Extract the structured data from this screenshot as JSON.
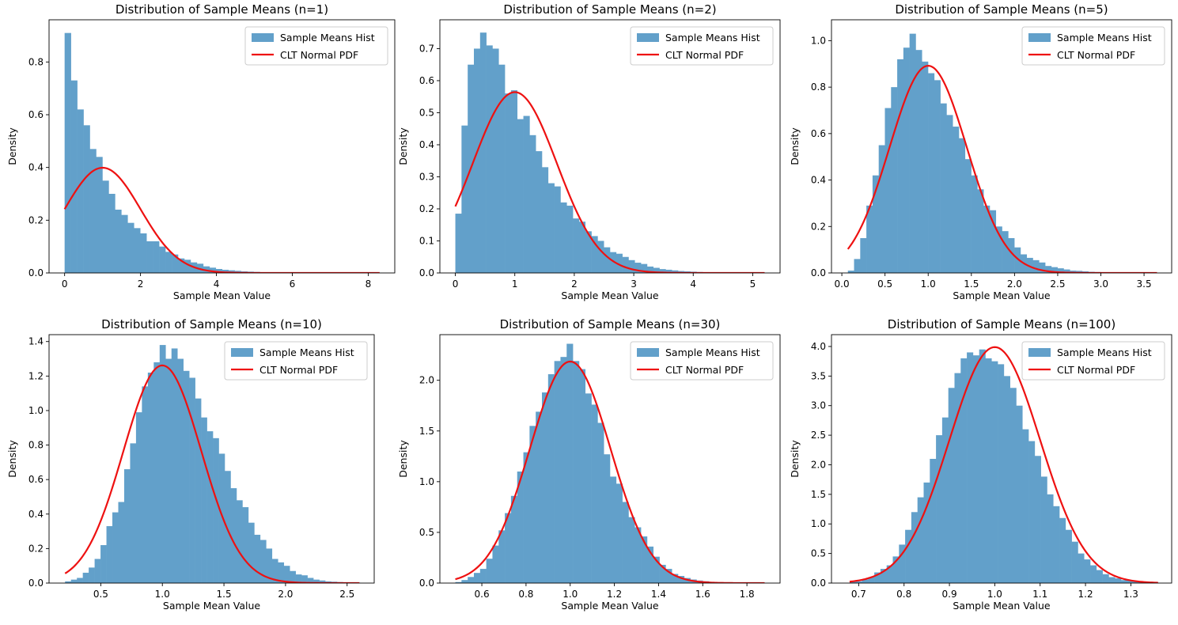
{
  "colors": {
    "hist": "#62a0ca",
    "pdf": "#ee1111",
    "axis": "#000000",
    "legend_border": "#cccccc"
  },
  "chart_data": [
    {
      "type": "bar",
      "title": "Distribution of Sample Means (n=1)",
      "xlabel": "Sample Mean Value",
      "ylabel": "Density",
      "xlim": [
        -0.41,
        8.7
      ],
      "ylim": [
        0,
        0.96
      ],
      "xticks": [
        0,
        2,
        4,
        6,
        8
      ],
      "xtick_labels": [
        "0",
        "2",
        "4",
        "6",
        "8"
      ],
      "yticks": [
        0,
        0.2,
        0.4,
        0.6,
        0.8
      ],
      "ytick_labels": [
        "0.0",
        "0.2",
        "0.4",
        "0.6",
        "0.8"
      ],
      "bin_start": 0.0,
      "bin_width": 0.166,
      "values": [
        0.91,
        0.73,
        0.62,
        0.56,
        0.47,
        0.44,
        0.35,
        0.3,
        0.24,
        0.22,
        0.19,
        0.17,
        0.15,
        0.12,
        0.12,
        0.1,
        0.08,
        0.07,
        0.055,
        0.05,
        0.04,
        0.035,
        0.025,
        0.02,
        0.015,
        0.012,
        0.01,
        0.008,
        0.006,
        0.005,
        0.004,
        0.003,
        0.002,
        0.002,
        0.0015,
        0.001,
        0.001,
        0.0008,
        0.0006,
        0.0005,
        0.0004,
        0.0003,
        0.0002,
        0.0002,
        0.0002,
        0.0001,
        0.0001,
        0.0001,
        0.0001,
        0.0001
      ],
      "normal": {
        "mean": 1.0,
        "sd": 1.0,
        "x_range": [
          0.0,
          8.3
        ]
      },
      "legend": [
        "Sample Means Hist",
        "CLT Normal PDF"
      ],
      "legend_loc": "upper right"
    },
    {
      "type": "bar",
      "title": "Distribution of Sample Means (n=2)",
      "xlabel": "Sample Mean Value",
      "ylabel": "Density",
      "xlim": [
        -0.26,
        5.46
      ],
      "ylim": [
        0,
        0.79
      ],
      "xticks": [
        0,
        1,
        2,
        3,
        4,
        5
      ],
      "xtick_labels": [
        "0",
        "1",
        "2",
        "3",
        "4",
        "5"
      ],
      "yticks": [
        0,
        0.1,
        0.2,
        0.3,
        0.4,
        0.5,
        0.6,
        0.7
      ],
      "ytick_labels": [
        "0.0",
        "0.1",
        "0.2",
        "0.3",
        "0.4",
        "0.5",
        "0.6",
        "0.7"
      ],
      "bin_start": 0.0,
      "bin_width": 0.104,
      "values": [
        0.185,
        0.46,
        0.65,
        0.7,
        0.75,
        0.71,
        0.7,
        0.65,
        0.56,
        0.57,
        0.48,
        0.49,
        0.43,
        0.38,
        0.33,
        0.28,
        0.27,
        0.22,
        0.21,
        0.17,
        0.16,
        0.13,
        0.115,
        0.1,
        0.08,
        0.065,
        0.06,
        0.05,
        0.04,
        0.032,
        0.028,
        0.02,
        0.016,
        0.012,
        0.01,
        0.008,
        0.006,
        0.005,
        0.004,
        0.003,
        0.0025,
        0.002,
        0.0015,
        0.001,
        0.001,
        0.0008,
        0.0006,
        0.0005,
        0.0004,
        0.0003
      ],
      "normal": {
        "mean": 1.0,
        "sd": 0.7071,
        "x_range": [
          0.0,
          5.2
        ]
      },
      "legend": [
        "Sample Means Hist",
        "CLT Normal PDF"
      ],
      "legend_loc": "upper right"
    },
    {
      "type": "bar",
      "title": "Distribution of Sample Means (n=5)",
      "xlabel": "Sample Mean Value",
      "ylabel": "Density",
      "xlim": [
        -0.12,
        3.82
      ],
      "ylim": [
        0,
        1.09
      ],
      "xticks": [
        0,
        0.5,
        1,
        1.5,
        2,
        2.5,
        3,
        3.5
      ],
      "xtick_labels": [
        "0.0",
        "0.5",
        "1.0",
        "1.5",
        "2.0",
        "2.5",
        "3.0",
        "3.5"
      ],
      "yticks": [
        0,
        0.2,
        0.4,
        0.6,
        0.8,
        1.0
      ],
      "ytick_labels": [
        "0.0",
        "0.2",
        "0.4",
        "0.6",
        "0.8",
        "1.0"
      ],
      "bin_start": 0.07,
      "bin_width": 0.0714,
      "values": [
        0.01,
        0.06,
        0.15,
        0.29,
        0.42,
        0.55,
        0.71,
        0.8,
        0.92,
        0.97,
        1.03,
        0.96,
        0.91,
        0.86,
        0.83,
        0.73,
        0.68,
        0.63,
        0.58,
        0.49,
        0.42,
        0.36,
        0.29,
        0.27,
        0.2,
        0.18,
        0.15,
        0.11,
        0.08,
        0.065,
        0.055,
        0.045,
        0.03,
        0.025,
        0.02,
        0.015,
        0.01,
        0.009,
        0.007,
        0.005,
        0.004,
        0.003,
        0.002,
        0.002,
        0.0015,
        0.001,
        0.001,
        0.0008,
        0.0005,
        0.0004
      ],
      "normal": {
        "mean": 1.0,
        "sd": 0.4472,
        "x_range": [
          0.07,
          3.65
        ]
      },
      "legend": [
        "Sample Means Hist",
        "CLT Normal PDF"
      ],
      "legend_loc": "upper right"
    },
    {
      "type": "bar",
      "title": "Distribution of Sample Means (n=10)",
      "xlabel": "Sample Mean Value",
      "ylabel": "Density",
      "xlim": [
        0.08,
        2.72
      ],
      "ylim": [
        0,
        1.44
      ],
      "xticks": [
        0.5,
        1.0,
        1.5,
        2.0,
        2.5
      ],
      "xtick_labels": [
        "0.5",
        "1.0",
        "1.5",
        "2.0",
        "2.5"
      ],
      "yticks": [
        0,
        0.2,
        0.4,
        0.6,
        0.8,
        1.0,
        1.2,
        1.4
      ],
      "ytick_labels": [
        "0.0",
        "0.2",
        "0.4",
        "0.6",
        "0.8",
        "1.0",
        "1.2",
        "1.4"
      ],
      "bin_start": 0.21,
      "bin_width": 0.048,
      "values": [
        0.01,
        0.02,
        0.03,
        0.06,
        0.09,
        0.14,
        0.22,
        0.33,
        0.41,
        0.47,
        0.66,
        0.81,
        0.99,
        1.14,
        1.22,
        1.28,
        1.38,
        1.3,
        1.36,
        1.3,
        1.23,
        1.19,
        1.07,
        0.96,
        0.88,
        0.84,
        0.75,
        0.65,
        0.55,
        0.48,
        0.44,
        0.35,
        0.28,
        0.25,
        0.2,
        0.14,
        0.12,
        0.1,
        0.07,
        0.05,
        0.045,
        0.03,
        0.02,
        0.015,
        0.01,
        0.008,
        0.006,
        0.004,
        0.003,
        0.002
      ],
      "normal": {
        "mean": 1.0,
        "sd": 0.3162,
        "x_range": [
          0.21,
          2.6
        ]
      },
      "legend": [
        "Sample Means Hist",
        "CLT Normal PDF"
      ],
      "legend_loc": "upper right"
    },
    {
      "type": "bar",
      "title": "Distribution of Sample Means (n=30)",
      "xlabel": "Sample Mean Value",
      "ylabel": "Density",
      "xlim": [
        0.41,
        1.95
      ],
      "ylim": [
        0,
        2.45
      ],
      "xticks": [
        0.6,
        0.8,
        1.0,
        1.2,
        1.4,
        1.6,
        1.8
      ],
      "xtick_labels": [
        "0.6",
        "0.8",
        "1.0",
        "1.2",
        "1.4",
        "1.6",
        "1.8"
      ],
      "yticks": [
        0,
        0.5,
        1.0,
        1.5,
        2.0
      ],
      "ytick_labels": [
        "0.0",
        "0.5",
        "1.0",
        "1.5",
        "2.0"
      ],
      "bin_start": 0.48,
      "bin_width": 0.028,
      "values": [
        0.01,
        0.03,
        0.06,
        0.1,
        0.14,
        0.24,
        0.37,
        0.52,
        0.69,
        0.86,
        1.1,
        1.29,
        1.55,
        1.69,
        1.88,
        2.06,
        2.19,
        2.23,
        2.36,
        2.19,
        2.11,
        1.87,
        1.76,
        1.58,
        1.27,
        1.05,
        0.98,
        0.8,
        0.65,
        0.55,
        0.46,
        0.36,
        0.26,
        0.18,
        0.14,
        0.09,
        0.07,
        0.05,
        0.035,
        0.025,
        0.018,
        0.012,
        0.008,
        0.006,
        0.004,
        0.003,
        0.002,
        0.0015,
        0.001,
        0.001
      ],
      "normal": {
        "mean": 1.0,
        "sd": 0.1826,
        "x_range": [
          0.48,
          1.88
        ]
      },
      "legend": [
        "Sample Means Hist",
        "CLT Normal PDF"
      ],
      "legend_loc": "upper right"
    },
    {
      "type": "bar",
      "title": "Distribution of Sample Means (n=100)",
      "xlabel": "Sample Mean Value",
      "ylabel": "Density",
      "xlim": [
        0.64,
        1.39
      ],
      "ylim": [
        0,
        4.2
      ],
      "xticks": [
        0.7,
        0.8,
        0.9,
        1.0,
        1.1,
        1.2,
        1.3
      ],
      "xtick_labels": [
        "0.7",
        "0.8",
        "0.9",
        "1.0",
        "1.1",
        "1.2",
        "1.3"
      ],
      "yticks": [
        0,
        0.5,
        1.0,
        1.5,
        2.0,
        2.5,
        3.0,
        3.5,
        4.0
      ],
      "ytick_labels": [
        "0.0",
        "0.5",
        "1.0",
        "1.5",
        "2.0",
        "2.5",
        "3.0",
        "3.5",
        "4.0"
      ],
      "bin_start": 0.68,
      "bin_width": 0.0136,
      "values": [
        0.02,
        0.03,
        0.06,
        0.1,
        0.18,
        0.24,
        0.3,
        0.45,
        0.65,
        0.9,
        1.2,
        1.45,
        1.7,
        2.1,
        2.5,
        2.8,
        3.3,
        3.55,
        3.8,
        3.9,
        3.85,
        3.95,
        3.8,
        3.75,
        3.7,
        3.5,
        3.3,
        3.0,
        2.6,
        2.4,
        2.15,
        1.8,
        1.5,
        1.3,
        1.1,
        0.9,
        0.7,
        0.5,
        0.4,
        0.3,
        0.22,
        0.15,
        0.1,
        0.08,
        0.05,
        0.04,
        0.03,
        0.02,
        0.015,
        0.01
      ],
      "normal": {
        "mean": 1.0,
        "sd": 0.1,
        "x_range": [
          0.68,
          1.36
        ]
      },
      "legend": [
        "Sample Means Hist",
        "CLT Normal PDF"
      ],
      "legend_loc": "upper right"
    }
  ]
}
